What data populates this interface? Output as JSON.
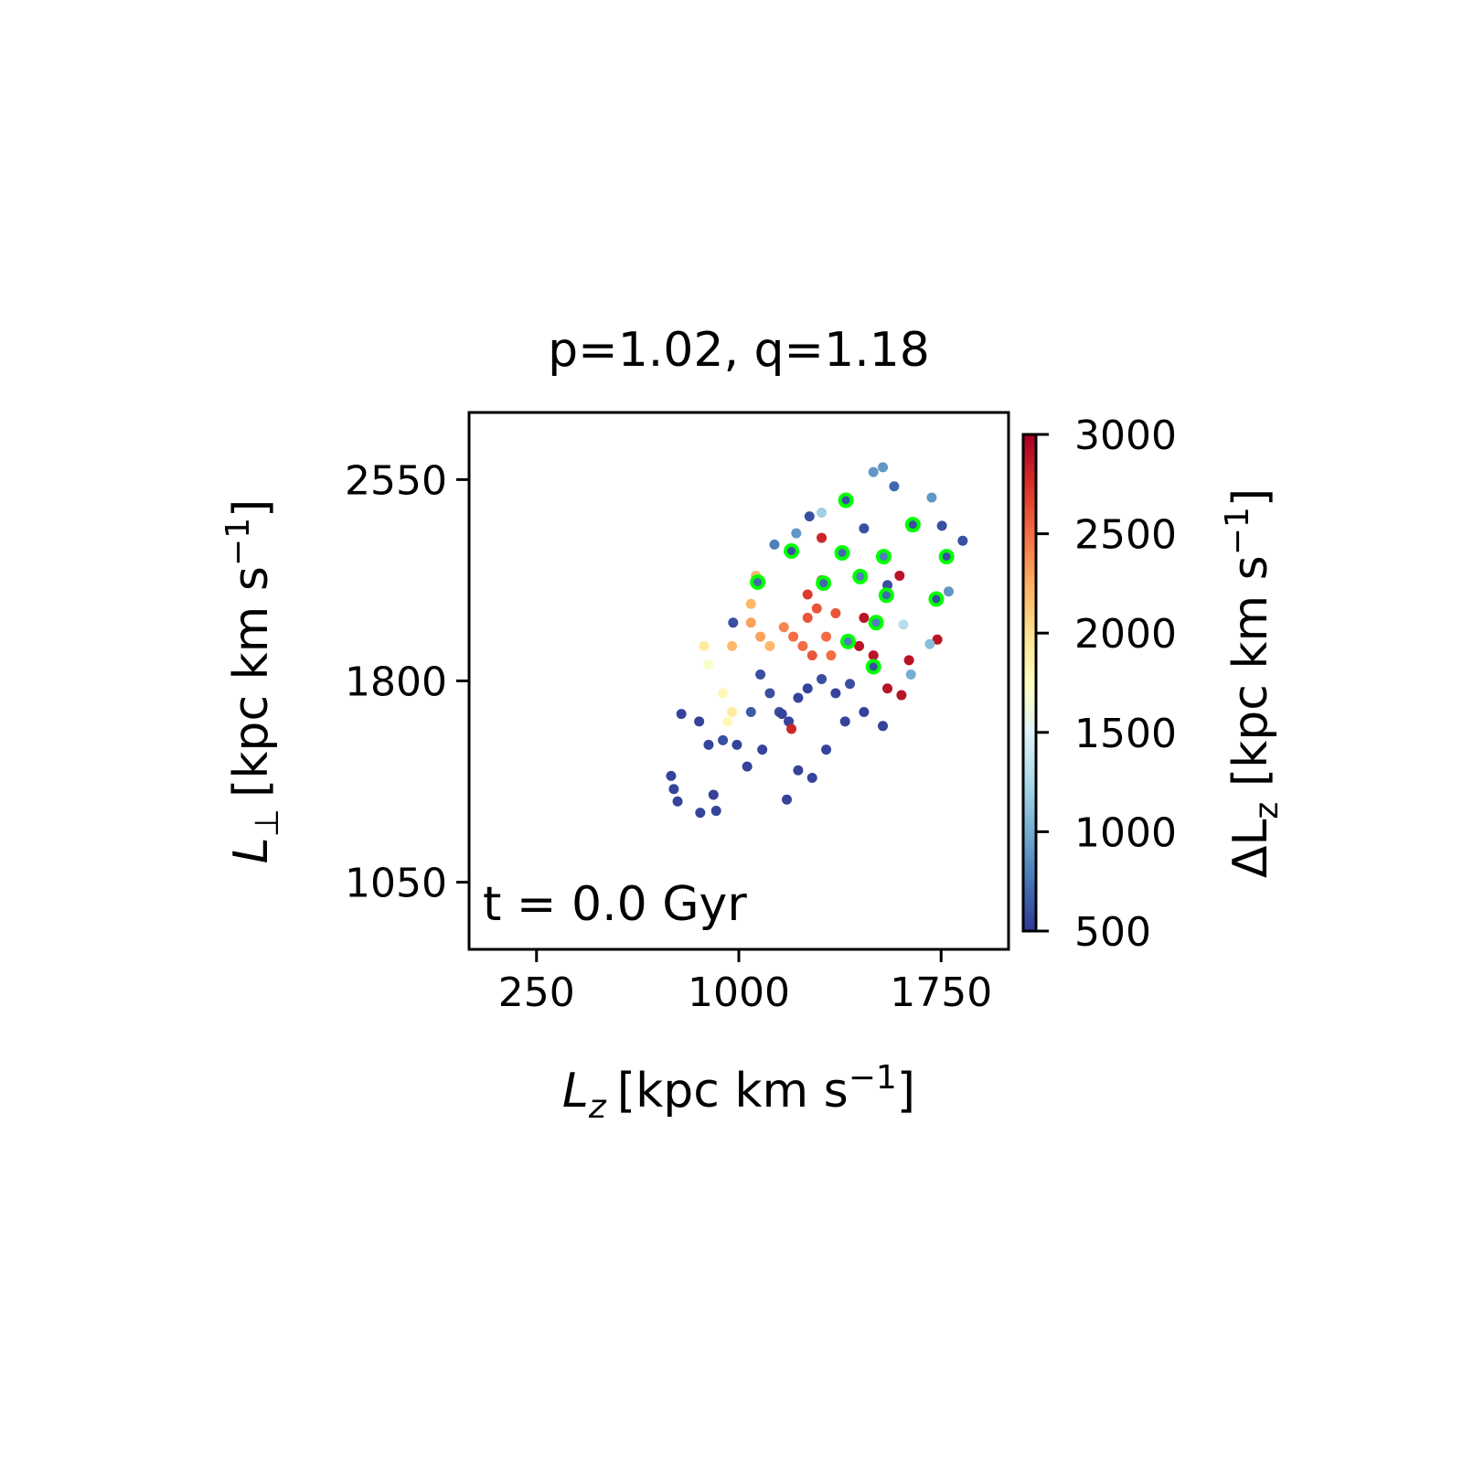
{
  "chart_data": {
    "type": "scatter",
    "title": "p=1.02, q=1.18",
    "annotation": "t = 0.0 Gyr",
    "xlabel": {
      "symbol": "L",
      "subscript": "z",
      "unit": "[kpc km s",
      "exponent": "−1",
      "close": "]"
    },
    "ylabel": {
      "symbol": "L",
      "subscript": "⊥",
      "unit": "[kpc km s",
      "exponent": "−1",
      "close": "]"
    },
    "xlim": [
      0,
      2000
    ],
    "ylim": [
      800,
      2800
    ],
    "xticks": [
      250,
      1000,
      1750
    ],
    "yticks": [
      1050,
      1800,
      2550
    ],
    "colorbar": {
      "label": {
        "symbol": "ΔL",
        "subscript": "z",
        "unit": " [kpc km s",
        "exponent": "−1",
        "close": "]"
      },
      "cmap": "RdYlBu_r",
      "lim": [
        500,
        3000
      ],
      "ticks": [
        500,
        1000,
        1500,
        2000,
        2500,
        3000
      ]
    },
    "series": [
      {
        "x": [
          749,
          759,
          773,
          857,
          916,
          906,
          787,
          853,
          888,
          941,
          993,
          1031,
          1087,
          1178,
          1220,
          1272,
          1324,
          1150,
          1185,
          1115,
          1220,
          1255,
          1307,
          1359,
          1412,
          1464,
          1534,
          1394,
          1080,
          1045,
          1160,
          975,
          1045,
          1080,
          1115,
          1167,
          1202,
          1237,
          1255,
          1289,
          1272,
          1324,
          1342,
          1255,
          1307,
          1359,
          871,
          888,
          941,
          975,
          958,
          1063,
          1045,
          1464,
          1446,
          1499,
          1551,
          1603,
          1631,
          1736,
          1596,
          1307,
          1195,
          1499,
          1534,
          1576,
          1715,
          1307,
          1262,
          1830,
          1753,
          1132,
          1213,
          1464,
          1778,
          1638,
          1708,
          1610,
          979,
          1551
        ],
        "values": [
          1446,
          1397,
          1351,
          1309,
          1316,
          1376,
          1677,
          1649,
          1562,
          1579,
          1562,
          1481,
          1544,
          1358,
          1467,
          1439,
          1544,
          1684,
          1649,
          1754,
          1737,
          1772,
          1807,
          1754,
          1789,
          1684,
          1632,
          1649,
          1824,
          1684,
          1677,
          1930,
          2017,
          1965,
          1930,
          2000,
          1965,
          1930,
          2035,
          2070,
          1895,
          1965,
          1895,
          2122,
          2175,
          2052,
          1930,
          1860,
          1754,
          1684,
          1649,
          2192,
          2087,
          2035,
          1930,
          1895,
          1772,
          1747,
          1877,
          1954,
          2192,
          2333,
          1621,
          2578,
          2596,
          2525,
          2483,
          2427,
          2413,
          2322,
          2378,
          2308,
          2350,
          2368,
          2133,
          1824,
          1937,
          2010,
          2017,
          2157
        ],
        "c": [
          550,
          550,
          550,
          550,
          550,
          550,
          550,
          550,
          550,
          600,
          550,
          550,
          550,
          550,
          550,
          550,
          550,
          600,
          550,
          600,
          550,
          550,
          600,
          550,
          600,
          550,
          550,
          550,
          600,
          650,
          550,
          2200,
          2300,
          2300,
          2200,
          2400,
          2500,
          2500,
          2600,
          2600,
          2600,
          2500,
          2500,
          2700,
          2700,
          2600,
          1900,
          1700,
          1800,
          1900,
          1800,
          2200,
          2200,
          2900,
          2900,
          2900,
          2900,
          2900,
          2900,
          2900,
          2900,
          2800,
          2800,
          900,
          900,
          700,
          900,
          1200,
          600,
          600,
          600,
          800,
          900,
          600,
          900,
          1000,
          1100,
          1300,
          600,
          600
        ]
      },
      {
        "x": [
          1397,
          1195,
          1383,
          1537,
          1645,
          1770,
          1070,
          1314,
          1450,
          1547,
          1732,
          1509,
          1405,
          1499
        ],
        "values": [
          2473,
          2284,
          2277,
          2263,
          2382,
          2263,
          2168,
          2164,
          2189,
          2119,
          2105,
          2017,
          1947,
          1853
        ],
        "c": [
          600,
          600,
          700,
          800,
          600,
          600,
          700,
          700,
          800,
          700,
          600,
          800,
          800,
          600
        ],
        "edgecolor": "#00ff00"
      }
    ]
  }
}
